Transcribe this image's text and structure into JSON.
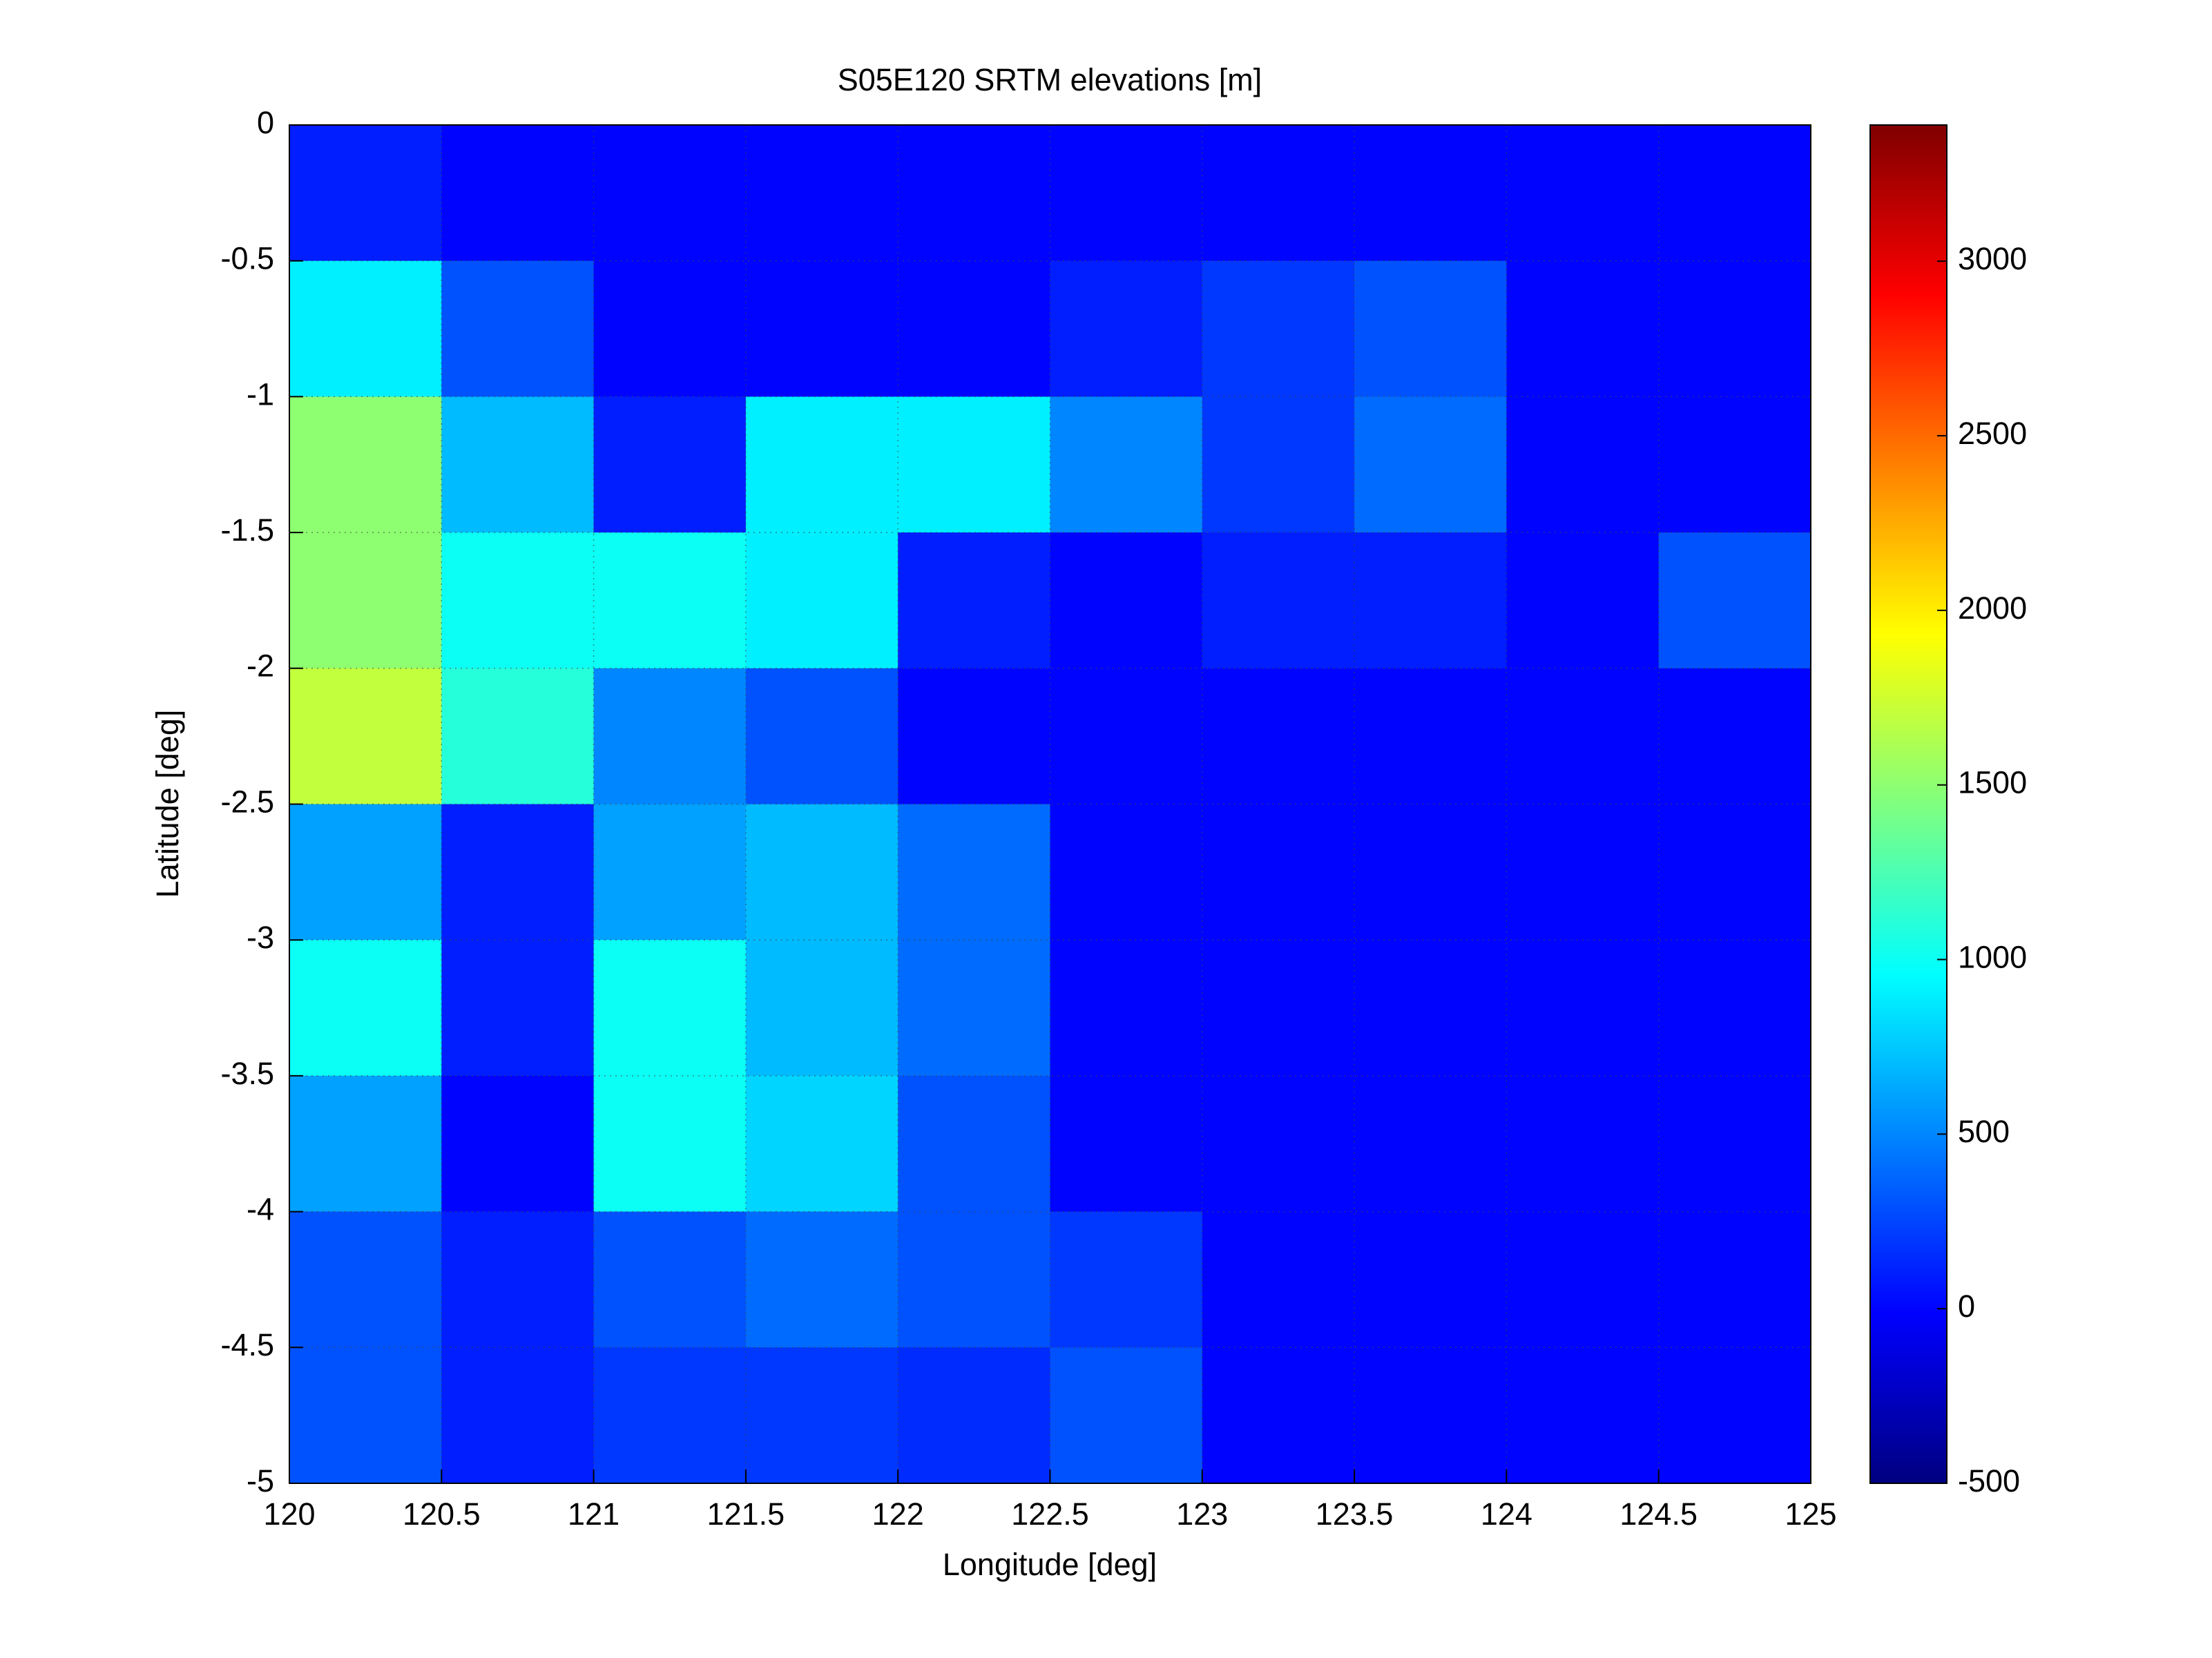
{
  "chart_data": {
    "type": "heatmap",
    "title": "S05E120 SRTM elevations [m]",
    "xlabel": "Longitude [deg]",
    "ylabel": "Latitude [deg]",
    "x": [
      120.25,
      120.75,
      121.25,
      121.75,
      122.25,
      122.75,
      123.25,
      123.75,
      124.25,
      124.75
    ],
    "y": [
      -0.25,
      -0.75,
      -1.25,
      -1.75,
      -2.25,
      -2.75,
      -3.25,
      -3.75,
      -4.25,
      -4.75
    ],
    "z": [
      [
        100,
        0,
        0,
        0,
        0,
        0,
        0,
        0,
        0,
        0
      ],
      [
        900,
        300,
        0,
        0,
        0,
        100,
        200,
        300,
        0,
        0
      ],
      [
        1500,
        700,
        100,
        900,
        900,
        500,
        200,
        400,
        0,
        0
      ],
      [
        1500,
        1000,
        1000,
        900,
        100,
        0,
        100,
        100,
        0,
        300
      ],
      [
        1700,
        1100,
        500,
        300,
        0,
        0,
        0,
        0,
        0,
        0
      ],
      [
        600,
        100,
        600,
        700,
        400,
        0,
        0,
        0,
        0,
        0
      ],
      [
        1000,
        100,
        1000,
        700,
        400,
        0,
        0,
        0,
        0,
        0
      ],
      [
        600,
        0,
        1000,
        800,
        300,
        0,
        0,
        0,
        0,
        0
      ],
      [
        300,
        100,
        300,
        400,
        300,
        200,
        0,
        0,
        0,
        0
      ],
      [
        300,
        100,
        200,
        200,
        150,
        300,
        0,
        0,
        0,
        0
      ]
    ],
    "xlim": [
      120,
      125
    ],
    "xticks": [
      120,
      120.5,
      121,
      121.5,
      122,
      122.5,
      123,
      123.5,
      124,
      124.5,
      125
    ],
    "ylim": [
      -5,
      0
    ],
    "yticks": [
      0,
      -0.5,
      -1,
      -1.5,
      -2,
      -2.5,
      -3,
      -3.5,
      -4,
      -4.5,
      -5
    ],
    "clim": [
      -500,
      3390
    ],
    "cticks": [
      -500,
      0,
      500,
      1000,
      1500,
      2000,
      2500,
      3000
    ],
    "colormap": "jet",
    "grid": true
  }
}
